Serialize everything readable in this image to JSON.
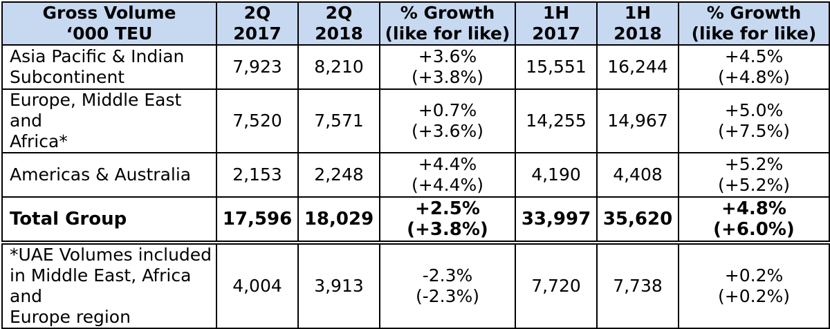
{
  "header": {
    "col1": [
      "Gross Volume",
      "‘000 TEU"
    ],
    "col2": [
      "2Q",
      "2017"
    ],
    "col3": [
      "2Q",
      "2018"
    ],
    "col4": [
      "% Growth",
      "(like for like)"
    ],
    "col5": [
      "1H",
      "2017"
    ],
    "col6": [
      "1H",
      "2018"
    ],
    "col7": [
      "% Growth",
      "(like for like)"
    ]
  },
  "rows": [
    {
      "region": [
        "Asia Pacific & Indian",
        "Subcontinent"
      ],
      "q2_2017": "7,923",
      "q2_2018": "8,210",
      "q_growth": [
        "+3.6%",
        "(+3.8%)"
      ],
      "h1_2017": "15,551",
      "h1_2018": "16,244",
      "h_growth": [
        "+4.5%",
        "(+4.8%)"
      ]
    },
    {
      "region": [
        "Europe, Middle East and",
        "Africa*"
      ],
      "q2_2017": "7,520",
      "q2_2018": "7,571",
      "q_growth": [
        "+0.7%",
        "(+3.6%)"
      ],
      "h1_2017": "14,255",
      "h1_2018": "14,967",
      "h_growth": [
        "+5.0%",
        "(+7.5%)"
      ]
    },
    {
      "region": [
        "Americas & Australia"
      ],
      "q2_2017": "2,153",
      "q2_2018": "2,248",
      "q_growth": [
        "+4.4%",
        "(+4.4%)"
      ],
      "h1_2017": "4,190",
      "h1_2018": "4,408",
      "h_growth": [
        "+5.2%",
        "(+5.2%)"
      ]
    }
  ],
  "total": {
    "region": "Total Group",
    "q2_2017": "17,596",
    "q2_2018": "18,029",
    "q_growth": [
      "+2.5%",
      "(+3.8%)"
    ],
    "h1_2017": "33,997",
    "h1_2018": "35,620",
    "h_growth": [
      "+4.8%",
      "(+6.0%)"
    ]
  },
  "note": {
    "region": [
      "*UAE Volumes included",
      "in Middle East, Africa and",
      "Europe region"
    ],
    "q2_2017": "4,004",
    "q2_2018": "3,913",
    "q_growth": [
      "-2.3%",
      "(-2.3%)"
    ],
    "h1_2017": "7,720",
    "h1_2018": "7,738",
    "h_growth": [
      "+0.2%",
      "(+0.2%)"
    ]
  }
}
